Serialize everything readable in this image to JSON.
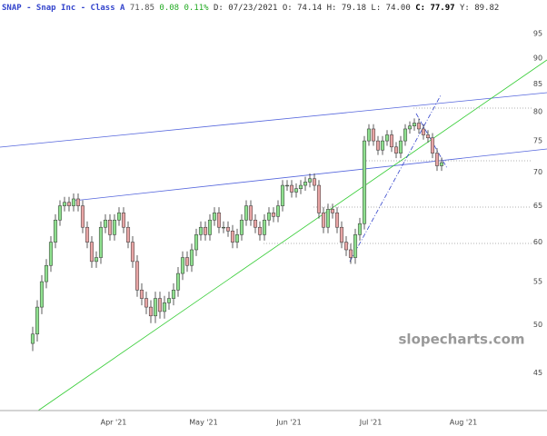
{
  "header": {
    "name": "SNAP - Snap Inc - Class A",
    "last": "71.85",
    "change": "0.08 0.11%",
    "details": "D: 07/23/2021 O: 74.14 H: 79.18 L: 74.00",
    "close_label": "C: 77.97",
    "extra": "Y: 89.82"
  },
  "chart_data": {
    "type": "candlestick",
    "watermark": "slopecharts.com",
    "log_scale": true,
    "up_color": "#8fe08f",
    "down_color": "#e8a5a5",
    "open": [
      48,
      49,
      52,
      55,
      57,
      60,
      63,
      65,
      65.5,
      65,
      66,
      65,
      62,
      60,
      57.5,
      58,
      62,
      63,
      61,
      63,
      64,
      62,
      60,
      57.5,
      54,
      53,
      52,
      51,
      53,
      51.5,
      52.5,
      53,
      54,
      56,
      58,
      57,
      59,
      61,
      62,
      61,
      63,
      64,
      62,
      62,
      61.5,
      60,
      61,
      63,
      65,
      63,
      62,
      61,
      63,
      64,
      63.5,
      65,
      68,
      68,
      67,
      67.5,
      68,
      68.5,
      69,
      68,
      64,
      62,
      64.5,
      64,
      62,
      60,
      59,
      58,
      61,
      62.5,
      75,
      77,
      75,
      73.5,
      75,
      76,
      74,
      73,
      75,
      77,
      77.5,
      78,
      77,
      76,
      75.5,
      73,
      71
    ],
    "high": [
      49.8,
      52.8,
      55.8,
      57.8,
      60.8,
      63.8,
      65.8,
      66.3,
      66.3,
      66.8,
      66.8,
      65.8,
      62.8,
      60.8,
      58.8,
      62.8,
      63.8,
      63.8,
      63.8,
      64.8,
      64.8,
      62.8,
      60.8,
      58.3,
      54.8,
      53.8,
      52.8,
      53.8,
      53.8,
      53.3,
      53.8,
      54.8,
      56.8,
      58.8,
      58.8,
      59.8,
      61.8,
      62.8,
      62.8,
      63.8,
      64.8,
      64.8,
      62.8,
      62.8,
      62.3,
      61.8,
      63.8,
      65.8,
      65.8,
      63.8,
      62.8,
      63.8,
      64.8,
      64.8,
      65.8,
      68.8,
      68.8,
      68.8,
      68.3,
      68.8,
      69.3,
      69.8,
      69.8,
      68.8,
      64.8,
      65.3,
      65.3,
      64.8,
      62.8,
      60.8,
      59.8,
      61.8,
      63.3,
      75.8,
      77.8,
      77.8,
      75.8,
      75.8,
      76.8,
      76.8,
      74.8,
      75.8,
      77.8,
      78.3,
      78.8,
      78.8,
      77.8,
      76.8,
      76.3,
      73.8,
      72.3
    ],
    "low": [
      47.2,
      48.2,
      51.2,
      54.2,
      56.2,
      59.2,
      62.2,
      64.2,
      64.2,
      64.2,
      64.2,
      61.2,
      59.2,
      56.7,
      56.7,
      57.2,
      61.2,
      60.2,
      60.2,
      62.2,
      61.2,
      59.2,
      56.7,
      53.2,
      52.2,
      51.2,
      50.2,
      50.2,
      50.7,
      50.7,
      51.7,
      52.2,
      53.2,
      55.2,
      56.2,
      56.2,
      58.2,
      60.2,
      60.2,
      60.2,
      62.2,
      61.2,
      61.2,
      60.7,
      59.2,
      59.2,
      60.2,
      62.2,
      62.2,
      61.2,
      60.2,
      60.2,
      62.2,
      62.7,
      62.7,
      64.2,
      67.2,
      66.2,
      66.2,
      66.7,
      67.2,
      67.7,
      67.2,
      63.2,
      61.2,
      61.2,
      63.2,
      61.2,
      59.2,
      58.2,
      57.2,
      57.2,
      60.2,
      61.7,
      74.2,
      74.2,
      72.7,
      72.7,
      74.2,
      73.2,
      72.2,
      72.2,
      74.2,
      76.2,
      76.7,
      76.2,
      75.2,
      74.7,
      72.2,
      70.2,
      70.2
    ],
    "close": [
      49,
      52,
      55,
      57,
      60,
      63,
      65,
      65.5,
      65,
      66,
      65,
      62,
      60,
      57.5,
      58,
      62,
      63,
      61,
      63,
      64,
      62,
      60,
      57.5,
      54,
      53,
      52,
      51,
      53,
      51.5,
      52.5,
      53,
      54,
      56,
      58,
      57,
      59,
      61,
      62,
      61,
      63,
      64,
      62,
      62,
      61.5,
      60,
      61,
      63,
      65,
      63,
      62,
      61,
      63,
      64,
      63.5,
      65,
      68,
      68,
      67,
      67.5,
      68,
      68.5,
      69,
      68,
      64,
      62,
      64.5,
      64,
      62,
      60,
      59,
      58,
      61,
      62.5,
      75,
      77,
      75,
      73.5,
      75,
      76,
      74,
      73,
      75,
      77,
      77.5,
      78,
      77,
      76,
      75.5,
      73,
      71,
      71.5
    ],
    "xlim": [
      -7.2,
      113.2
    ],
    "xticks": [
      {
        "value": 17.8,
        "label": "Apr '21"
      },
      {
        "value": 37.6,
        "label": "May '21"
      },
      {
        "value": 56.4,
        "label": "Jun '21"
      },
      {
        "value": 74.4,
        "label": "Jul '21"
      },
      {
        "value": 94.8,
        "label": "Aug '21"
      }
    ],
    "ylim": [
      41.4,
      102.3
    ],
    "yticks": [
      45,
      50,
      55,
      60,
      65,
      70,
      75,
      80,
      85,
      90,
      95
    ]
  }
}
